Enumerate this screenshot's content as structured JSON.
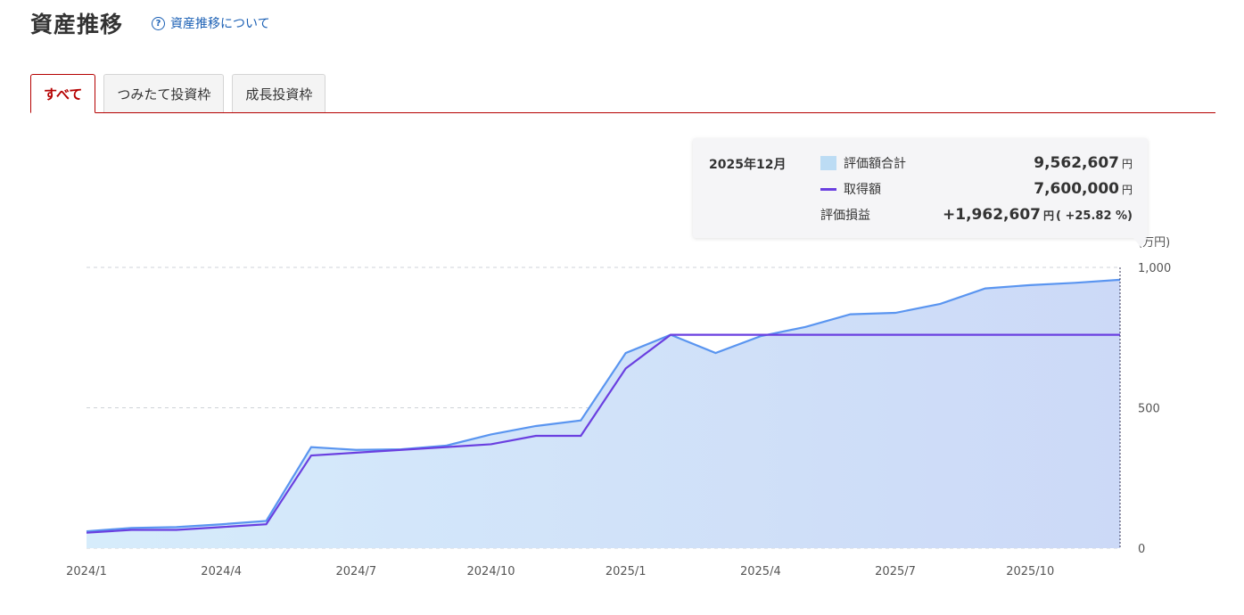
{
  "page": {
    "title": "資産推移",
    "help_link": "資産推移について"
  },
  "tabs": [
    {
      "label": "すべて",
      "active": true
    },
    {
      "label": "つみたて投資枠",
      "active": false
    },
    {
      "label": "成長投資枠",
      "active": false
    }
  ],
  "tooltip": {
    "date": "2025年12月",
    "rows": {
      "total": {
        "label": "評価額合計",
        "value": "9,562,607",
        "unit": "円"
      },
      "cost": {
        "label": "取得額",
        "value": "7,600,000",
        "unit": "円"
      },
      "gain": {
        "label": "評価損益",
        "value": "+1,962,607",
        "unit": "円",
        "pct": "( +25.82 %)"
      }
    }
  },
  "chart_data": {
    "type": "area",
    "y_unit": "(万円)",
    "ylim": [
      0,
      1000
    ],
    "y_ticks": [
      {
        "value": 0,
        "label": "0"
      },
      {
        "value": 500,
        "label": "500"
      },
      {
        "value": 1000,
        "label": "1,000"
      }
    ],
    "x": [
      "2024/1",
      "2024/2",
      "2024/3",
      "2024/4",
      "2024/5",
      "2024/6",
      "2024/7",
      "2024/8",
      "2024/9",
      "2024/10",
      "2024/11",
      "2024/12",
      "2025/1",
      "2025/2",
      "2025/3",
      "2025/4",
      "2025/5",
      "2025/6",
      "2025/7",
      "2025/8",
      "2025/9",
      "2025/10",
      "2025/11",
      "2025/12"
    ],
    "x_tick_labels": [
      {
        "index": 0,
        "label": "2024/1"
      },
      {
        "index": 3,
        "label": "2024/4"
      },
      {
        "index": 6,
        "label": "2024/7"
      },
      {
        "index": 9,
        "label": "2024/10"
      },
      {
        "index": 12,
        "label": "2025/1"
      },
      {
        "index": 15,
        "label": "2025/4"
      },
      {
        "index": 18,
        "label": "2025/7"
      },
      {
        "index": 21,
        "label": "2025/10"
      }
    ],
    "series": [
      {
        "name": "評価額合計",
        "kind": "area",
        "color": "#5a95f0",
        "values": [
          60,
          72,
          75,
          85,
          97,
          360,
          350,
          352,
          365,
          405,
          435,
          455,
          695,
          760,
          695,
          755,
          788,
          833,
          838,
          870,
          925,
          937,
          945,
          956
        ]
      },
      {
        "name": "取得額",
        "kind": "line",
        "color": "#6a3fe0",
        "values": [
          55,
          65,
          65,
          75,
          85,
          330,
          340,
          350,
          360,
          370,
          400,
          400,
          640,
          760,
          760,
          760,
          760,
          760,
          760,
          760,
          760,
          760,
          760,
          760
        ]
      }
    ],
    "highlight_index": 23,
    "grid": true
  }
}
